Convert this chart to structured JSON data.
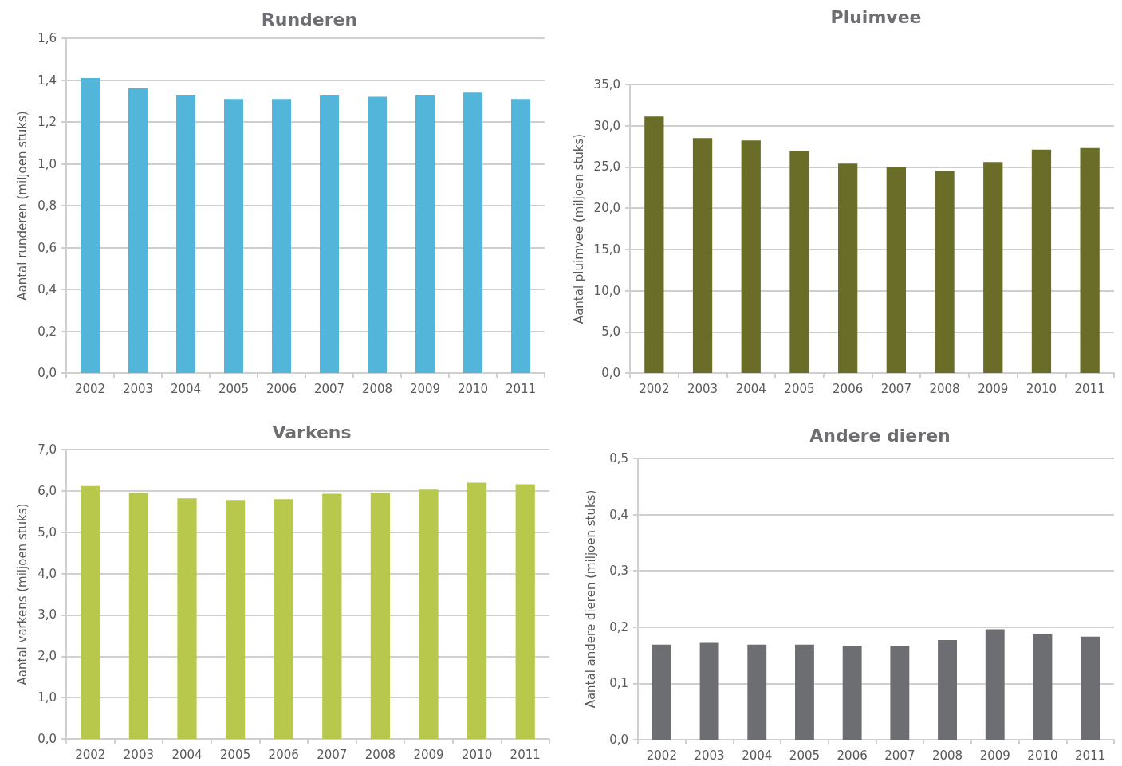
{
  "chart_data": [
    {
      "type": "bar",
      "title": "Runderen",
      "ylabel": "Aantal runderen (miljoen stuks)",
      "categories": [
        "2002",
        "2003",
        "2004",
        "2005",
        "2006",
        "2007",
        "2008",
        "2009",
        "2010",
        "2011"
      ],
      "values": [
        1.41,
        1.36,
        1.33,
        1.31,
        1.31,
        1.33,
        1.32,
        1.33,
        1.34,
        1.31
      ],
      "color": "#53b5da",
      "ylim": [
        0,
        1.6
      ],
      "yticks": [
        {
          "value": 0,
          "label": "0,0"
        },
        {
          "value": 0.2,
          "label": "0,2"
        },
        {
          "value": 0.4,
          "label": "0,4"
        },
        {
          "value": 0.6,
          "label": "0,6"
        },
        {
          "value": 0.8,
          "label": "0,8"
        },
        {
          "value": 1,
          "label": "1,0"
        },
        {
          "value": 1.2,
          "label": "1,2"
        },
        {
          "value": 1.4,
          "label": "1,4"
        },
        {
          "value": 1.6,
          "label": "1,6"
        }
      ],
      "grid": "y"
    },
    {
      "type": "bar",
      "title": "Pluimvee",
      "ylabel": "Aantal pluimvee (miljoen stuks)",
      "categories": [
        "2002",
        "2003",
        "2004",
        "2005",
        "2006",
        "2007",
        "2008",
        "2009",
        "2010",
        "2011"
      ],
      "values": [
        31.1,
        28.5,
        28.2,
        26.9,
        25.4,
        25.0,
        24.5,
        25.6,
        27.1,
        27.3
      ],
      "color": "#6a6d27",
      "ylim": [
        0,
        35
      ],
      "yticks": [
        {
          "value": 0,
          "label": "0,0"
        },
        {
          "value": 5,
          "label": "5,0"
        },
        {
          "value": 10,
          "label": "10,0"
        },
        {
          "value": 15,
          "label": "15,0"
        },
        {
          "value": 20,
          "label": "20,0"
        },
        {
          "value": 25,
          "label": "25,0"
        },
        {
          "value": 30,
          "label": "30,0"
        },
        {
          "value": 35,
          "label": "35,0"
        }
      ],
      "grid": "y"
    },
    {
      "type": "bar",
      "title": "Varkens",
      "ylabel": "Aantal varkens (miljoen stuks)",
      "categories": [
        "2002",
        "2003",
        "2004",
        "2005",
        "2006",
        "2007",
        "2008",
        "2009",
        "2010",
        "2011"
      ],
      "values": [
        6.12,
        5.95,
        5.82,
        5.78,
        5.8,
        5.93,
        5.95,
        6.03,
        6.2,
        6.16
      ],
      "color": "#b7c84d",
      "ylim": [
        0,
        7
      ],
      "yticks": [
        {
          "value": 0,
          "label": "0,0"
        },
        {
          "value": 1,
          "label": "1,0"
        },
        {
          "value": 2,
          "label": "2,0"
        },
        {
          "value": 3,
          "label": "3,0"
        },
        {
          "value": 4,
          "label": "4,0"
        },
        {
          "value": 5,
          "label": "5,0"
        },
        {
          "value": 6,
          "label": "6,0"
        },
        {
          "value": 7,
          "label": "7,0"
        }
      ],
      "grid": "y"
    },
    {
      "type": "bar",
      "title": "Andere dieren",
      "ylabel": "Aantal andere dieren (miljoen stuks)",
      "categories": [
        "2002",
        "2003",
        "2004",
        "2005",
        "2006",
        "2007",
        "2008",
        "2009",
        "2010",
        "2011"
      ],
      "values": [
        0.169,
        0.172,
        0.169,
        0.169,
        0.167,
        0.167,
        0.177,
        0.196,
        0.188,
        0.183
      ],
      "color": "#6d6e71",
      "ylim": [
        0,
        0.5
      ],
      "yticks": [
        {
          "value": 0,
          "label": "0,0"
        },
        {
          "value": 0.1,
          "label": "0,1"
        },
        {
          "value": 0.2,
          "label": "0,2"
        },
        {
          "value": 0.3,
          "label": "0,3"
        },
        {
          "value": 0.4,
          "label": "0,4"
        },
        {
          "value": 0.5,
          "label": "0,5"
        }
      ],
      "grid": "y"
    }
  ]
}
